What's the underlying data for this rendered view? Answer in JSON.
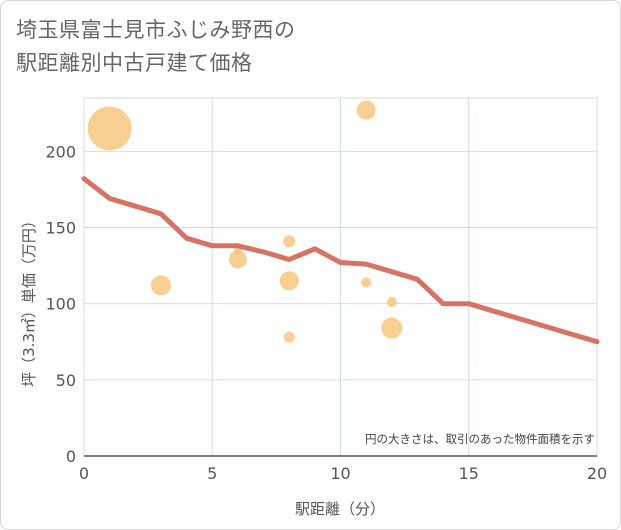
{
  "title_line1": "埼玉県富士見市ふじみ野西の",
  "title_line2": "駅距離別中古戸建て価格",
  "chart_data": {
    "type": "scatter",
    "title": "埼玉県富士見市ふじみ野西の駅距離別中古戸建て価格",
    "xlabel": "駅距離（分）",
    "ylabel": "坪（3.3㎡）単価（万円）",
    "xlim": [
      0,
      20
    ],
    "ylim": [
      0,
      235
    ],
    "xticks": [
      0,
      5,
      10,
      15,
      20
    ],
    "yticks": [
      0,
      50,
      100,
      150,
      200
    ],
    "grid": true,
    "annotation": "円の大きさは、取引のあった物件面積を示す",
    "bubbles": [
      {
        "x": 1,
        "y": 215,
        "size": 22
      },
      {
        "x": 3,
        "y": 112,
        "size": 10
      },
      {
        "x": 6,
        "y": 129,
        "size": 9
      },
      {
        "x": 6,
        "y": 135,
        "size": 4
      },
      {
        "x": 8,
        "y": 141,
        "size": 6
      },
      {
        "x": 8,
        "y": 115,
        "size": 9.5
      },
      {
        "x": 8,
        "y": 78,
        "size": 5.5
      },
      {
        "x": 11,
        "y": 227,
        "size": 9.5
      },
      {
        "x": 11,
        "y": 114,
        "size": 5
      },
      {
        "x": 12,
        "y": 101,
        "size": 5
      },
      {
        "x": 12,
        "y": 84,
        "size": 10.5
      }
    ],
    "trend_line": {
      "x": [
        0,
        1,
        3,
        4,
        5,
        6,
        7,
        8,
        9,
        10,
        11,
        12,
        13,
        14,
        15,
        16,
        17,
        18,
        19,
        20
      ],
      "y": [
        182,
        169,
        159,
        143,
        138,
        138,
        134,
        129,
        136,
        127,
        126,
        121,
        116,
        100,
        100,
        95,
        90,
        85,
        80,
        75
      ]
    },
    "colors": {
      "bubble": "#f5c77e",
      "line": "#d87363",
      "grid": "#cfdde8"
    }
  }
}
